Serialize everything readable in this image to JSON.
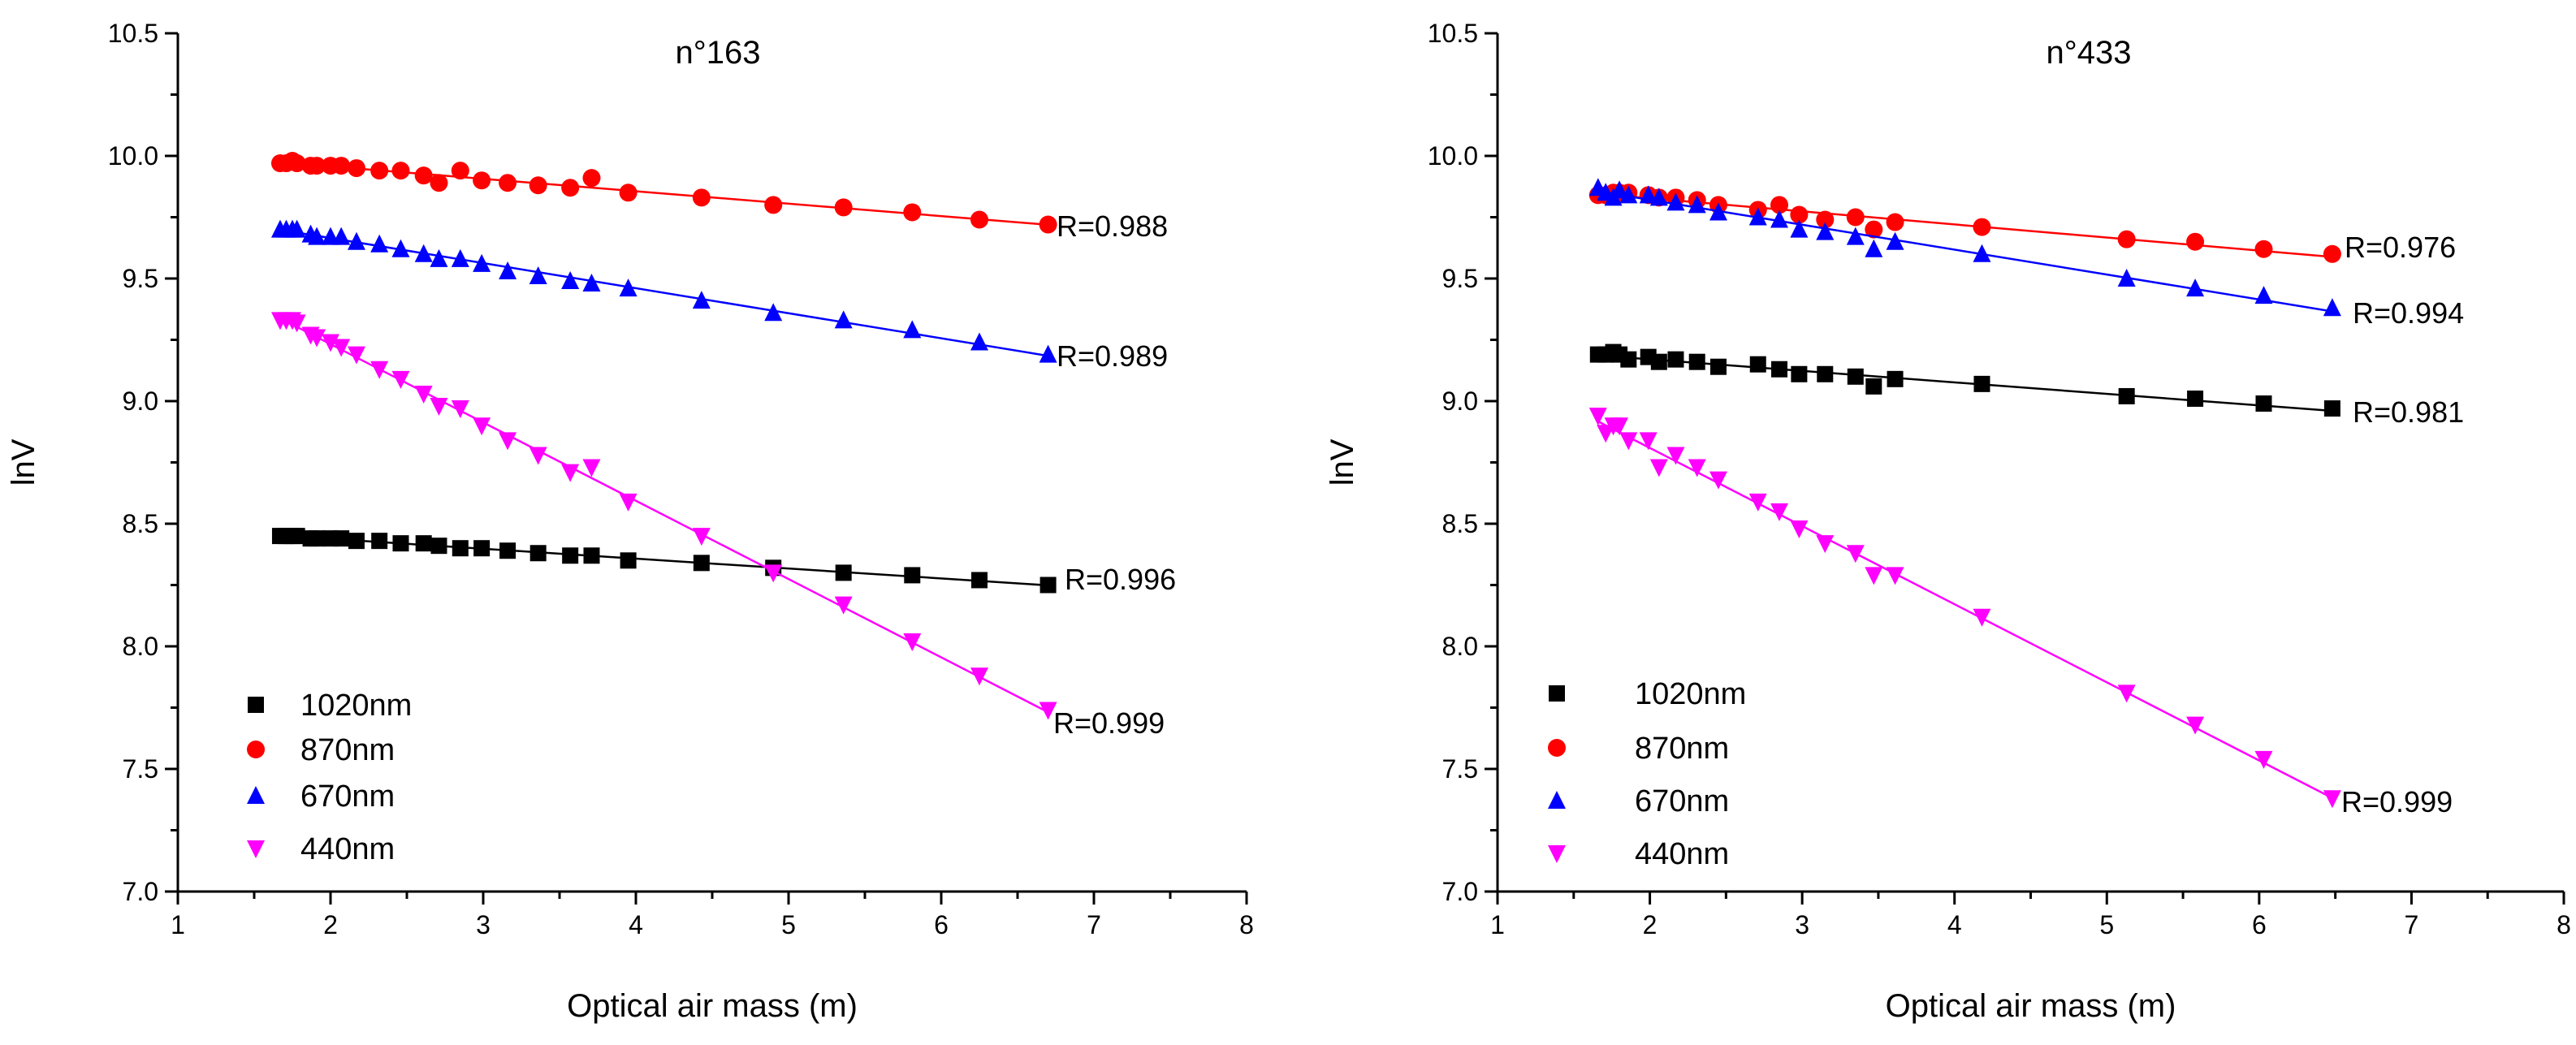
{
  "chart_data": [
    {
      "type": "scatter",
      "title": "n°163",
      "xlabel": "Optical air mass (m)",
      "ylabel": "lnV",
      "xlim": [
        1,
        8
      ],
      "ylim": [
        7.0,
        10.5
      ],
      "xticks": [
        "1",
        "2",
        "3",
        "4",
        "5",
        "6",
        "7",
        "8"
      ],
      "yticks": [
        "7.0",
        "7.5",
        "8.0",
        "8.5",
        "9.0",
        "9.5",
        "10.0",
        "10.5"
      ],
      "grid": false,
      "legend_position": "bottom-left",
      "x": [
        1.67,
        1.71,
        1.75,
        1.78,
        1.87,
        1.91,
        2.0,
        2.07,
        2.17,
        2.32,
        2.46,
        2.61,
        2.71,
        2.85,
        2.99,
        3.16,
        3.36,
        3.57,
        3.71,
        3.95,
        4.43,
        4.9,
        5.36,
        5.81,
        6.25,
        6.7
      ],
      "series": [
        {
          "name": "1020nm",
          "marker": "square",
          "color": "#000000",
          "r_label": "R=0.996",
          "values": [
            8.45,
            8.45,
            8.45,
            8.45,
            8.44,
            8.44,
            8.44,
            8.44,
            8.43,
            8.43,
            8.42,
            8.42,
            8.41,
            8.4,
            8.4,
            8.39,
            8.38,
            8.37,
            8.37,
            8.35,
            8.34,
            8.32,
            8.3,
            8.29,
            8.27,
            8.25
          ]
        },
        {
          "name": "870nm",
          "marker": "circle",
          "color": "#ff0000",
          "r_label": "R=0.988",
          "values": [
            9.97,
            9.97,
            9.98,
            9.97,
            9.96,
            9.96,
            9.96,
            9.96,
            9.95,
            9.94,
            9.94,
            9.92,
            9.89,
            9.94,
            9.9,
            9.89,
            9.88,
            9.87,
            9.91,
            9.85,
            9.83,
            9.8,
            9.79,
            9.77,
            9.74,
            9.72
          ]
        },
        {
          "name": "670nm",
          "marker": "triangle-up",
          "color": "#0000ff",
          "r_label": "R=0.989",
          "values": [
            9.7,
            9.7,
            9.7,
            9.7,
            9.68,
            9.67,
            9.67,
            9.67,
            9.65,
            9.64,
            9.62,
            9.6,
            9.58,
            9.58,
            9.56,
            9.53,
            9.51,
            9.49,
            9.48,
            9.46,
            9.41,
            9.36,
            9.33,
            9.29,
            9.24,
            9.19
          ]
        },
        {
          "name": "440nm",
          "marker": "triangle-down",
          "color": "#ff00ff",
          "r_label": "R=0.999",
          "values": [
            9.33,
            9.33,
            9.33,
            9.32,
            9.27,
            9.26,
            9.24,
            9.22,
            9.19,
            9.13,
            9.09,
            9.03,
            8.98,
            8.97,
            8.9,
            8.84,
            8.78,
            8.71,
            8.73,
            8.59,
            8.45,
            8.3,
            8.17,
            8.02,
            7.88,
            7.74
          ]
        }
      ]
    },
    {
      "type": "scatter",
      "title": "n°433",
      "xlabel": "Optical air mass (m)",
      "ylabel": "lnV",
      "xlim": [
        1,
        8
      ],
      "ylim": [
        7.0,
        10.5
      ],
      "xticks": [
        "1",
        "2",
        "3",
        "4",
        "5",
        "6",
        "7",
        "8"
      ],
      "yticks": [
        "7.0",
        "7.5",
        "8.0",
        "8.5",
        "9.0",
        "9.5",
        "10.0",
        "10.5"
      ],
      "grid": false,
      "legend_position": "bottom-left",
      "x": [
        1.66,
        1.71,
        1.76,
        1.8,
        1.86,
        1.99,
        2.06,
        2.17,
        2.31,
        2.45,
        2.71,
        2.85,
        2.98,
        3.15,
        3.35,
        3.47,
        3.61,
        4.18,
        5.13,
        5.58,
        6.03,
        6.48
      ],
      "series": [
        {
          "name": "1020nm",
          "marker": "square",
          "color": "#000000",
          "r_label": "R=0.981",
          "values": [
            9.19,
            9.19,
            9.2,
            9.19,
            9.17,
            9.18,
            9.16,
            9.17,
            9.16,
            9.14,
            9.15,
            9.13,
            9.11,
            9.11,
            9.1,
            9.06,
            9.09,
            9.07,
            9.02,
            9.01,
            8.99,
            8.97
          ]
        },
        {
          "name": "870nm",
          "marker": "circle",
          "color": "#ff0000",
          "r_label": "R=0.976",
          "values": [
            9.84,
            9.84,
            9.85,
            9.85,
            9.85,
            9.84,
            9.83,
            9.83,
            9.82,
            9.8,
            9.78,
            9.8,
            9.76,
            9.74,
            9.75,
            9.7,
            9.73,
            9.71,
            9.66,
            9.65,
            9.62,
            9.6
          ]
        },
        {
          "name": "670nm",
          "marker": "triangle-up",
          "color": "#0000ff",
          "r_label": "R=0.994",
          "values": [
            9.87,
            9.85,
            9.83,
            9.86,
            9.84,
            9.84,
            9.83,
            9.81,
            9.8,
            9.77,
            9.75,
            9.74,
            9.7,
            9.69,
            9.67,
            9.62,
            9.65,
            9.6,
            9.5,
            9.46,
            9.43,
            9.38
          ]
        },
        {
          "name": "440nm",
          "marker": "triangle-down",
          "color": "#ff00ff",
          "r_label": "R=0.999",
          "values": [
            8.94,
            8.87,
            8.9,
            8.9,
            8.84,
            8.84,
            8.73,
            8.78,
            8.73,
            8.68,
            8.59,
            8.55,
            8.48,
            8.42,
            8.38,
            8.29,
            8.29,
            8.12,
            7.81,
            7.68,
            7.54,
            7.38
          ]
        }
      ]
    }
  ]
}
